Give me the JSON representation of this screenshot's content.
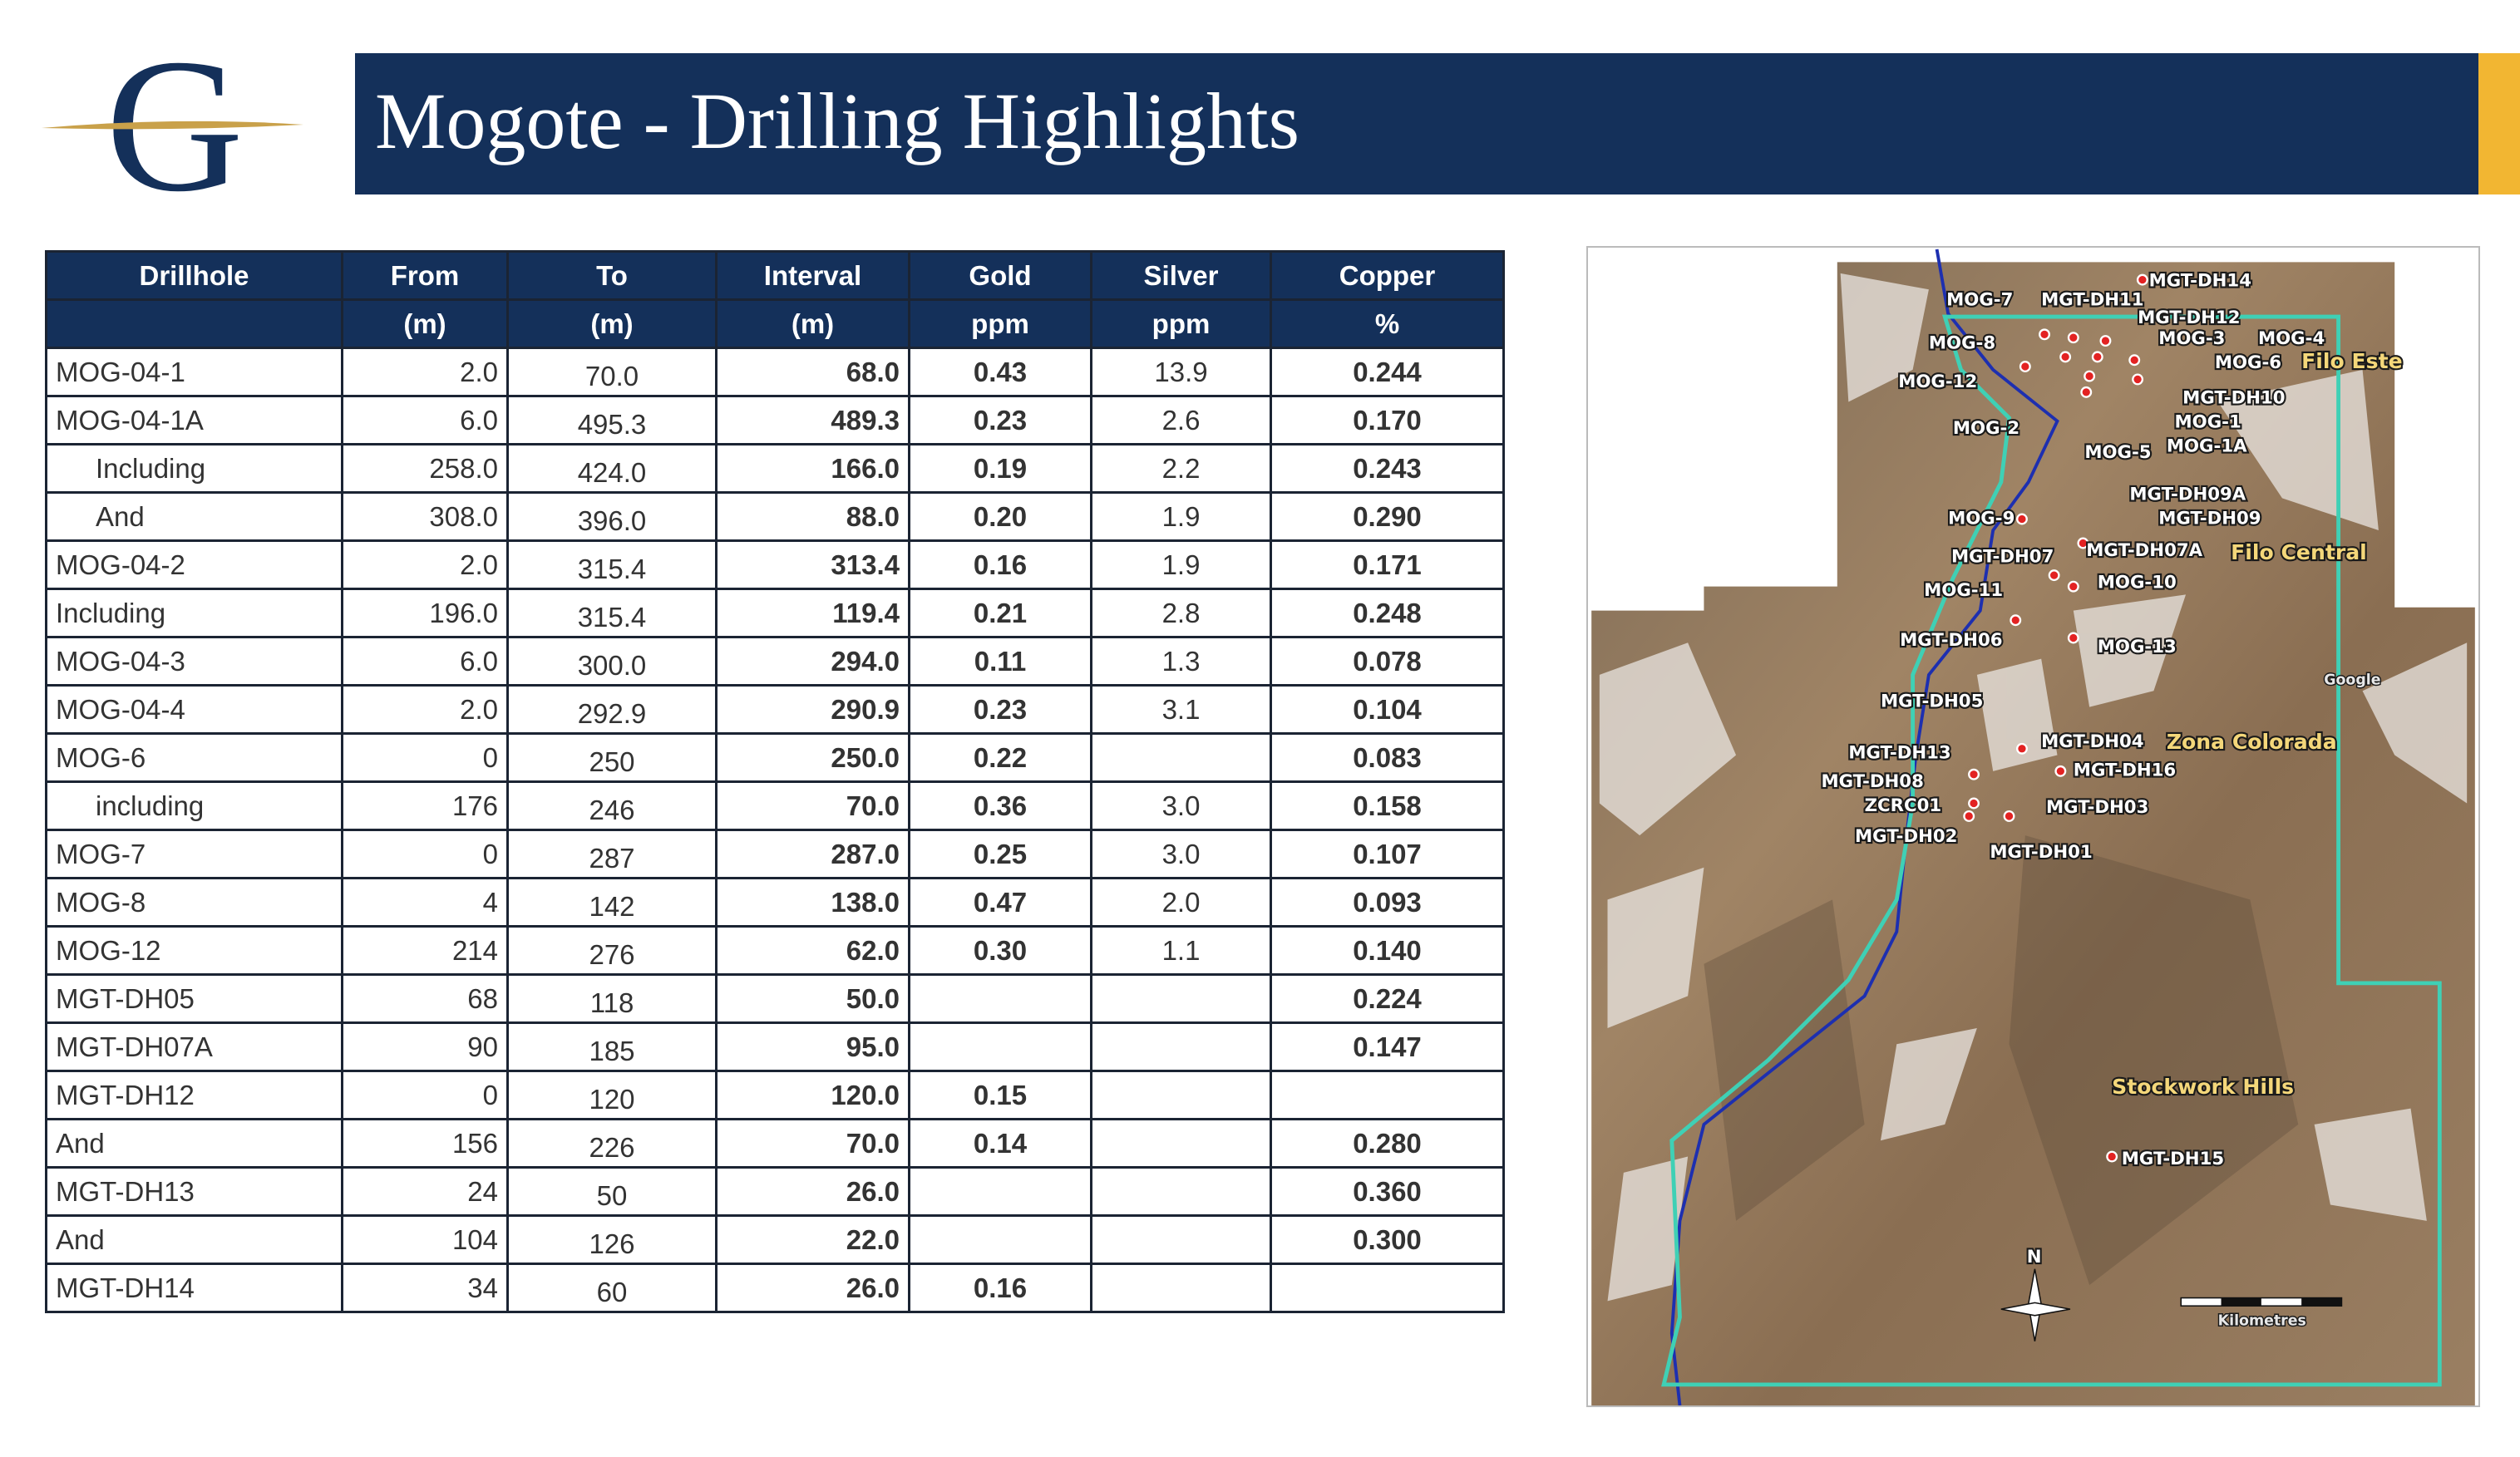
{
  "header": {
    "logo": "G",
    "title": "Mogote - Drilling Highlights"
  },
  "table": {
    "header": [
      [
        "Drillhole",
        "From",
        "To",
        "Interval",
        "Gold",
        "Silver",
        "Copper"
      ],
      [
        null,
        "(m)",
        "(m)",
        "(m)",
        "ppm",
        "ppm",
        "%"
      ]
    ],
    "rows": [
      [
        "MOG-04-1",
        "2.0",
        "70.0",
        "68.0",
        "0.43",
        "13.9",
        "0.244"
      ],
      [
        "MOG-04-1A",
        "6.0",
        "495.3",
        "489.3",
        "0.23",
        "2.6",
        "0.170"
      ],
      [
        "Including",
        "258.0",
        "424.0",
        "166.0",
        "0.19",
        "2.2",
        "0.243"
      ],
      [
        "And",
        "308.0",
        "396.0",
        "88.0",
        "0.20",
        "1.9",
        "0.290"
      ],
      [
        "MOG-04-2",
        "2.0",
        "315.4",
        "313.4",
        "0.16",
        "1.9",
        "0.171"
      ],
      [
        "Including",
        "196.0",
        "315.4",
        "119.4",
        "0.21",
        "2.8",
        "0.248"
      ],
      [
        "MOG-04-3",
        "6.0",
        "300.0",
        "294.0",
        "0.11",
        "1.3",
        "0.078"
      ],
      [
        "MOG-04-4",
        "2.0",
        "292.9",
        "290.9",
        "0.23",
        "3.1",
        "0.104"
      ],
      [
        "MOG-6",
        "0",
        "250",
        "250.0",
        "0.22",
        null,
        "0.083"
      ],
      [
        "including",
        "176",
        "246",
        "70.0",
        "0.36",
        "3.0",
        "0.158"
      ],
      [
        "MOG-7",
        "0",
        "287",
        "287.0",
        "0.25",
        "3.0",
        "0.107"
      ],
      [
        "MOG-8",
        "4",
        "142",
        "138.0",
        "0.47",
        "2.0",
        "0.093"
      ],
      [
        "MOG-12",
        "214",
        "276",
        "62.0",
        "0.30",
        "1.1",
        "0.140"
      ],
      [
        "MGT-DH05",
        "68",
        "118",
        "50.0",
        null,
        null,
        "0.224"
      ],
      [
        "MGT-DH07A",
        "90",
        "185",
        "95.0",
        null,
        null,
        "0.147"
      ],
      [
        "MGT-DH12",
        "0",
        "120",
        "120.0",
        "0.15",
        null,
        null
      ],
      [
        "And",
        "156",
        "226",
        "70.0",
        "0.14",
        null,
        "0.280"
      ],
      [
        "MGT-DH13",
        "24",
        "50",
        "26.0",
        null,
        null,
        "0.360"
      ],
      [
        "And",
        "104",
        "126",
        "22.0",
        null,
        null,
        "0.300"
      ],
      [
        "MGT-DH14",
        "34",
        "60",
        "26.0",
        "0.16",
        null,
        null
      ]
    ]
  },
  "map": {
    "labels": [
      "MGT-DH14",
      "MOG-7",
      "MGT-DH11",
      "MGT-DH12",
      "MOG-8",
      "MOG-3",
      "MOG-4",
      "MOG-6",
      "Filo Este",
      "MOG-12",
      "MGT-DH10",
      "MOG-1",
      "MOG-2",
      "MOG-5",
      "MOG-1A",
      "MGT-DH09A",
      "MGT-DH09",
      "MOG-9",
      "MGT-DH07",
      "MGT-DH07A",
      "Filo Central",
      "MOG-10",
      "MOG-11",
      "MGT-DH06",
      "MOG-13",
      "Google",
      "MGT-DH05",
      "MGT-DH13",
      "MGT-DH04",
      "Zona Colorada",
      "MGT-DH08",
      "MGT-DH16",
      "ZCRC01",
      "MGT-DH03",
      "MGT-DH02",
      "MGT-DH01",
      "Stockwork Hills",
      "MGT-DH15",
      "N",
      "Kilometres"
    ]
  }
}
